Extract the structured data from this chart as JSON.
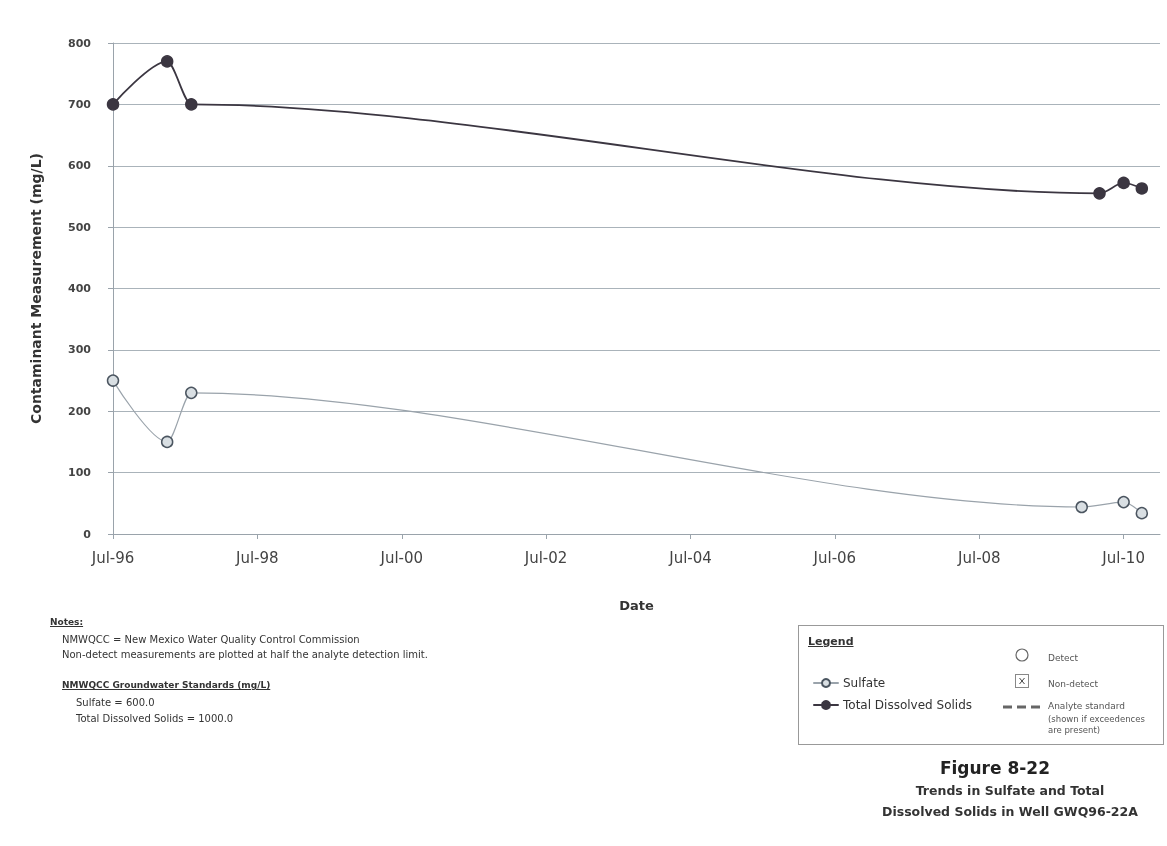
{
  "chart_data": {
    "type": "line",
    "title": "Figure 8-22",
    "subtitle": "Trends in Sulfate and Total Dissolved Solids in Well GWQ96-22A",
    "xlabel": "Date",
    "ylabel": "Contaminant Measurement (mg/L)",
    "legend_title": "Legend",
    "series": [
      {
        "name": "Sulfate",
        "color": "#9aa3ab",
        "x": [
          "1996-07",
          "1997-04",
          "1997-08",
          "2009-12",
          "2010-07",
          "2010-10"
        ],
        "values": [
          250,
          150,
          230,
          44,
          52,
          34
        ]
      },
      {
        "name": "Total Dissolved Solids",
        "color": "#3b3641",
        "x": [
          "1996-07",
          "1997-04",
          "1997-08",
          "2010-03",
          "2010-07",
          "2010-10"
        ],
        "values": [
          700,
          770,
          700,
          555,
          572,
          563
        ]
      }
    ],
    "xlim": [
      "1996-07",
      "2011-01"
    ],
    "xticks": [
      {
        "value": "1996-07",
        "label": "Jul-96"
      },
      {
        "value": "1998-07",
        "label": "Jul-98"
      },
      {
        "value": "2000-07",
        "label": "Jul-00"
      },
      {
        "value": "2002-07",
        "label": "Jul-02"
      },
      {
        "value": "2004-07",
        "label": "Jul-04"
      },
      {
        "value": "2006-07",
        "label": "Jul-06"
      },
      {
        "value": "2008-07",
        "label": "Jul-08"
      },
      {
        "value": "2010-07",
        "label": "Jul-10"
      }
    ],
    "ylim": [
      0,
      800
    ],
    "yticks": [
      0,
      100,
      200,
      300,
      400,
      500,
      600,
      700,
      800
    ],
    "grid": "y",
    "legend": "bottom right",
    "marker": "circle",
    "line_style": "solid",
    "annotations": [
      "Notes:",
      "NMWQCC = New Mexico Water Quality Control Commission",
      "Non-detect measurements are plotted at half the analyte detection limit.",
      "NMWQCC Groundwater Standards (mg/L)",
      "Sulfate  =  600.0",
      "Total Dissolved Solids = 1000.0",
      "Detect",
      "Non-detect",
      "Analyte standard",
      "(shown if exceedences are present)"
    ]
  }
}
